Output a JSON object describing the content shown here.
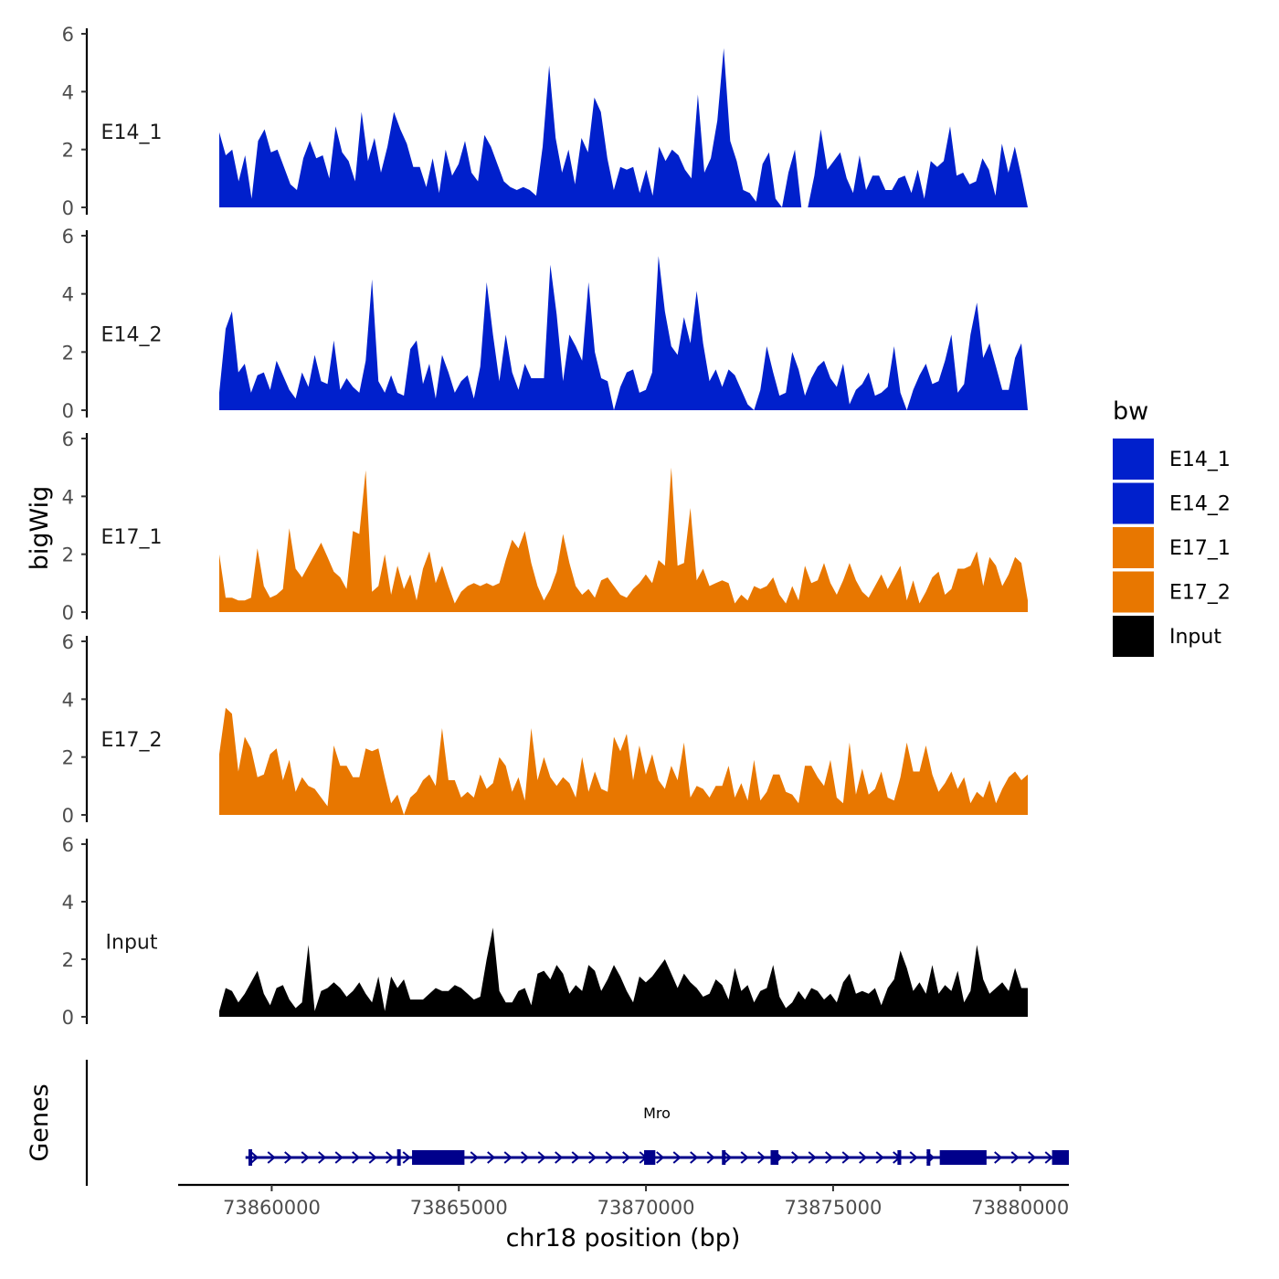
{
  "chart_data": {
    "type": "area",
    "ylabel": "bigWig",
    "xlabel": "chr18 position (bp)",
    "ylim": [
      0,
      6
    ],
    "y_ticks": [
      "0",
      "2",
      "4",
      "6"
    ],
    "xlim": [
      73857500,
      73881300
    ],
    "x_ticks": [
      {
        "value": 73860000,
        "label": "73860000"
      },
      {
        "value": 73865000,
        "label": "73865000"
      },
      {
        "value": 73870000,
        "label": "73870000"
      },
      {
        "value": 73875000,
        "label": "73875000"
      },
      {
        "value": 73880000,
        "label": "73880000"
      }
    ],
    "tracks": [
      {
        "name": "E14_1",
        "color": "#0020CC",
        "x_start": 73857500,
        "x_end": 73881300,
        "values": [
          2.6,
          1.8,
          2.0,
          0.9,
          1.8,
          0.3,
          2.3,
          2.7,
          1.9,
          2.0,
          1.4,
          0.8,
          0.6,
          1.7,
          2.3,
          1.7,
          1.8,
          1.0,
          2.8,
          1.9,
          1.6,
          0.9,
          3.3,
          1.6,
          2.4,
          1.2,
          2.1,
          3.3,
          2.7,
          2.2,
          1.4,
          1.4,
          0.7,
          1.7,
          0.5,
          2.0,
          1.1,
          1.5,
          2.3,
          1.2,
          0.9,
          2.5,
          2.1,
          1.5,
          0.9,
          0.7,
          0.6,
          0.7,
          0.6,
          0.4,
          2.1,
          4.9,
          2.4,
          1.2,
          2.0,
          0.8,
          2.4,
          1.9,
          3.8,
          3.3,
          1.7,
          0.6,
          1.4,
          1.3,
          1.4,
          0.5,
          1.3,
          0.4,
          2.1,
          1.6,
          2.0,
          1.8,
          1.3,
          1.0,
          3.9,
          1.2,
          1.7,
          3.0,
          5.5,
          2.3,
          1.6,
          0.6,
          0.5,
          0.2,
          1.5,
          1.9,
          0.3,
          0.0,
          1.2,
          2.0,
          0.0,
          0.0,
          1.1,
          2.7,
          1.3,
          1.6,
          1.9,
          1.0,
          0.5,
          1.8,
          0.6,
          1.1,
          1.1,
          0.6,
          0.6,
          1.0,
          1.1,
          0.5,
          1.3,
          0.3,
          1.6,
          1.4,
          1.6,
          2.8,
          1.1,
          1.2,
          0.8,
          0.9,
          1.7,
          1.3,
          0.4,
          2.2,
          1.2,
          2.1,
          1.1,
          0.0
        ]
      },
      {
        "name": "E14_2",
        "color": "#0020CC",
        "x_start": 73857500,
        "x_end": 73881300,
        "values": [
          0.6,
          2.8,
          3.4,
          1.3,
          1.6,
          0.6,
          1.2,
          1.3,
          0.7,
          1.7,
          1.2,
          0.7,
          0.4,
          1.3,
          0.8,
          1.9,
          1.0,
          0.9,
          2.4,
          0.7,
          1.1,
          0.8,
          0.6,
          1.7,
          4.5,
          1.0,
          0.6,
          1.2,
          0.6,
          0.5,
          2.1,
          2.4,
          0.9,
          1.6,
          0.4,
          1.9,
          1.3,
          0.6,
          1.0,
          1.2,
          0.4,
          1.5,
          4.4,
          2.6,
          1.0,
          2.6,
          1.3,
          0.7,
          1.6,
          1.1,
          1.1,
          1.1,
          5.0,
          3.3,
          1.0,
          2.6,
          2.2,
          1.7,
          4.4,
          2.0,
          1.1,
          1.0,
          0.0,
          0.8,
          1.3,
          1.4,
          0.6,
          0.7,
          1.3,
          5.3,
          3.4,
          2.2,
          1.9,
          3.2,
          2.3,
          4.1,
          2.3,
          1.0,
          1.4,
          0.8,
          1.4,
          1.2,
          0.7,
          0.2,
          0.0,
          0.7,
          2.2,
          1.3,
          0.5,
          0.6,
          2.0,
          1.4,
          0.5,
          1.1,
          1.5,
          1.7,
          1.1,
          0.8,
          1.6,
          0.2,
          0.7,
          0.9,
          1.3,
          0.5,
          0.6,
          0.8,
          2.2,
          0.6,
          0.0,
          0.7,
          1.2,
          1.6,
          0.9,
          1.0,
          1.7,
          2.6,
          0.6,
          0.9,
          2.6,
          3.7,
          1.8,
          2.3,
          1.5,
          0.7,
          0.7,
          1.8,
          2.3,
          0.0
        ]
      },
      {
        "name": "E17_1",
        "color": "#E87700",
        "x_start": 73857500,
        "x_end": 73881300,
        "values": [
          2.0,
          0.5,
          0.5,
          0.4,
          0.4,
          0.5,
          2.2,
          0.9,
          0.5,
          0.6,
          0.8,
          2.9,
          1.5,
          1.2,
          1.6,
          2.0,
          2.4,
          1.9,
          1.4,
          1.2,
          0.8,
          2.8,
          2.7,
          4.9,
          0.7,
          0.9,
          2.0,
          0.6,
          1.6,
          0.8,
          1.3,
          0.4,
          1.5,
          2.1,
          1.0,
          1.6,
          0.9,
          0.3,
          0.7,
          0.9,
          1.0,
          0.9,
          1.0,
          0.9,
          1.0,
          1.8,
          2.5,
          2.2,
          2.8,
          1.7,
          0.9,
          0.4,
          0.8,
          1.4,
          2.7,
          1.7,
          0.9,
          0.6,
          0.8,
          0.5,
          1.1,
          1.2,
          0.9,
          0.6,
          0.5,
          0.8,
          1.0,
          1.3,
          1.0,
          1.8,
          1.6,
          5.0,
          1.6,
          1.7,
          3.6,
          1.1,
          1.5,
          0.9,
          1.0,
          1.1,
          1.0,
          0.3,
          0.6,
          0.4,
          0.9,
          0.8,
          0.9,
          1.2,
          0.6,
          0.3,
          0.9,
          0.4,
          1.6,
          1.0,
          1.1,
          1.7,
          1.0,
          0.6,
          1.1,
          1.7,
          1.1,
          0.7,
          0.5,
          0.9,
          1.3,
          0.8,
          1.2,
          1.6,
          0.4,
          1.1,
          0.3,
          0.7,
          1.2,
          1.4,
          0.6,
          0.8,
          1.5,
          1.5,
          1.6,
          2.1,
          0.9,
          1.9,
          1.6,
          0.9,
          1.3,
          1.9,
          1.7,
          0.4
        ]
      },
      {
        "name": "E17_2",
        "color": "#E87700",
        "x_start": 73857500,
        "x_end": 73881300,
        "values": [
          2.1,
          3.7,
          3.5,
          1.5,
          2.7,
          2.3,
          1.3,
          1.4,
          2.1,
          2.3,
          1.2,
          1.9,
          0.8,
          1.3,
          1.0,
          0.9,
          0.6,
          0.3,
          2.4,
          1.7,
          1.7,
          1.3,
          1.3,
          2.3,
          2.2,
          2.3,
          1.3,
          0.4,
          0.7,
          0.0,
          0.6,
          0.8,
          1.2,
          1.4,
          1.0,
          3.0,
          1.2,
          1.2,
          0.6,
          0.8,
          0.6,
          1.4,
          0.9,
          1.1,
          2.0,
          1.7,
          0.8,
          1.3,
          0.5,
          3.0,
          1.2,
          2.0,
          1.3,
          1.0,
          1.3,
          1.1,
          0.6,
          2.0,
          0.8,
          1.5,
          0.9,
          0.8,
          2.7,
          2.2,
          2.8,
          1.2,
          2.4,
          1.4,
          2.1,
          1.2,
          0.9,
          1.7,
          1.2,
          2.5,
          0.6,
          1.0,
          0.9,
          0.6,
          1.0,
          1.0,
          1.7,
          0.6,
          1.1,
          0.5,
          1.9,
          0.5,
          0.8,
          1.4,
          1.4,
          0.8,
          0.7,
          0.4,
          1.7,
          1.7,
          1.3,
          1.0,
          1.9,
          0.6,
          0.4,
          2.5,
          0.7,
          1.6,
          0.7,
          0.9,
          1.5,
          0.6,
          0.5,
          1.3,
          2.5,
          1.5,
          1.5,
          2.4,
          1.4,
          0.8,
          1.1,
          1.5,
          0.9,
          1.3,
          0.4,
          0.8,
          0.6,
          1.2,
          0.4,
          0.9,
          1.3,
          1.5,
          1.2,
          1.4
        ]
      },
      {
        "name": "Input",
        "color": "#000000",
        "x_start": 73857500,
        "x_end": 73881300,
        "values": [
          0.2,
          1.0,
          0.9,
          0.5,
          0.8,
          1.2,
          1.6,
          0.8,
          0.4,
          1.0,
          1.1,
          0.6,
          0.3,
          0.5,
          2.5,
          0.2,
          0.9,
          1.0,
          1.2,
          1.0,
          0.7,
          0.9,
          1.2,
          0.8,
          0.5,
          1.4,
          0.2,
          1.4,
          1.0,
          1.3,
          0.6,
          0.6,
          0.6,
          0.8,
          1.0,
          0.9,
          0.9,
          1.1,
          1.0,
          0.8,
          0.6,
          0.7,
          2.0,
          3.1,
          0.9,
          0.5,
          0.5,
          0.9,
          1.0,
          0.4,
          1.5,
          1.6,
          1.3,
          1.8,
          1.5,
          0.8,
          1.1,
          0.9,
          1.8,
          1.6,
          0.9,
          1.3,
          1.8,
          1.4,
          0.9,
          0.5,
          1.4,
          1.2,
          1.4,
          1.7,
          2.0,
          1.5,
          1.0,
          1.5,
          1.2,
          1.0,
          0.7,
          0.8,
          1.3,
          1.1,
          0.6,
          1.7,
          0.9,
          1.1,
          0.5,
          0.9,
          1.0,
          1.8,
          0.7,
          0.3,
          0.5,
          0.9,
          0.6,
          1.0,
          0.9,
          0.6,
          0.8,
          0.5,
          1.2,
          1.5,
          0.8,
          0.9,
          0.8,
          1.0,
          0.4,
          1.0,
          1.3,
          2.3,
          1.7,
          0.9,
          1.2,
          0.8,
          1.8,
          0.8,
          1.1,
          0.9,
          1.6,
          0.5,
          0.9,
          2.5,
          1.3,
          0.8,
          1.0,
          1.2,
          0.9,
          1.7,
          1.0,
          1.0
        ]
      }
    ],
    "genes": {
      "title": "Genes",
      "name": "Mro",
      "color": "#00008B",
      "start": 73859300,
      "end": 73881300,
      "strand": "+",
      "exons": [
        {
          "start": 73859380,
          "end": 73859460,
          "thick": false
        },
        {
          "start": 73863350,
          "end": 73863430,
          "thick": false
        },
        {
          "start": 73863750,
          "end": 73865150,
          "thick": true
        },
        {
          "start": 73869950,
          "end": 73870250,
          "thick": true
        },
        {
          "start": 73872030,
          "end": 73872110,
          "thick": true
        },
        {
          "start": 73873330,
          "end": 73873540,
          "thick": true
        },
        {
          "start": 73876720,
          "end": 73876820,
          "thick": true
        },
        {
          "start": 73877500,
          "end": 73877580,
          "thick": false
        },
        {
          "start": 73877850,
          "end": 73879100,
          "thick": true
        },
        {
          "start": 73880850,
          "end": 73881300,
          "thick": true
        }
      ]
    },
    "legend": {
      "title": "bw",
      "entries": [
        {
          "label": "E14_1",
          "color": "#0020CC"
        },
        {
          "label": "E14_2",
          "color": "#0020CC"
        },
        {
          "label": "E17_1",
          "color": "#E87700"
        },
        {
          "label": "E17_2",
          "color": "#E87700"
        },
        {
          "label": "Input",
          "color": "#000000"
        }
      ]
    }
  }
}
